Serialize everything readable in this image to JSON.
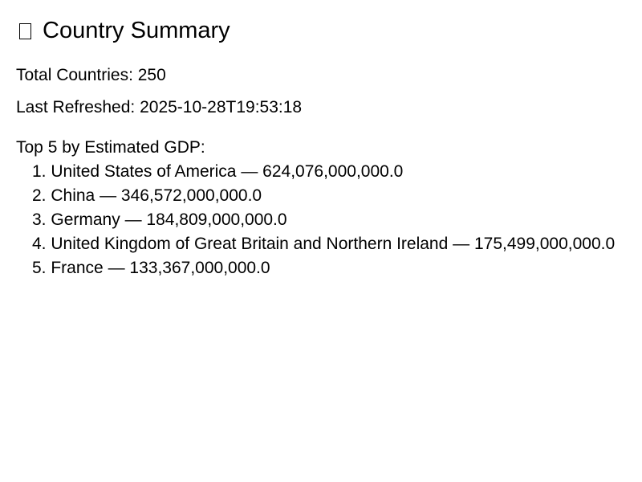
{
  "header": {
    "icon": "document-icon",
    "title": "Country Summary"
  },
  "summary": {
    "total_countries": "Total Countries: 250",
    "last_refreshed": "Last Refreshed: 2025-10-28T19:53:18"
  },
  "top5": {
    "heading": "Top 5 by Estimated GDP:",
    "items": [
      {
        "rank": "1.",
        "country": "United States of America",
        "gdp": "624,076,000,000.0"
      },
      {
        "rank": "2.",
        "country": "China",
        "gdp": "346,572,000,000.0"
      },
      {
        "rank": "3.",
        "country": "Germany",
        "gdp": "184,809,000,000.0"
      },
      {
        "rank": "4.",
        "country": "United Kingdom of Great Britain and Northern Ireland",
        "gdp": "175,499,000,000.0"
      },
      {
        "rank": "5.",
        "country": "France",
        "gdp": "133,367,000,000.0"
      }
    ]
  }
}
